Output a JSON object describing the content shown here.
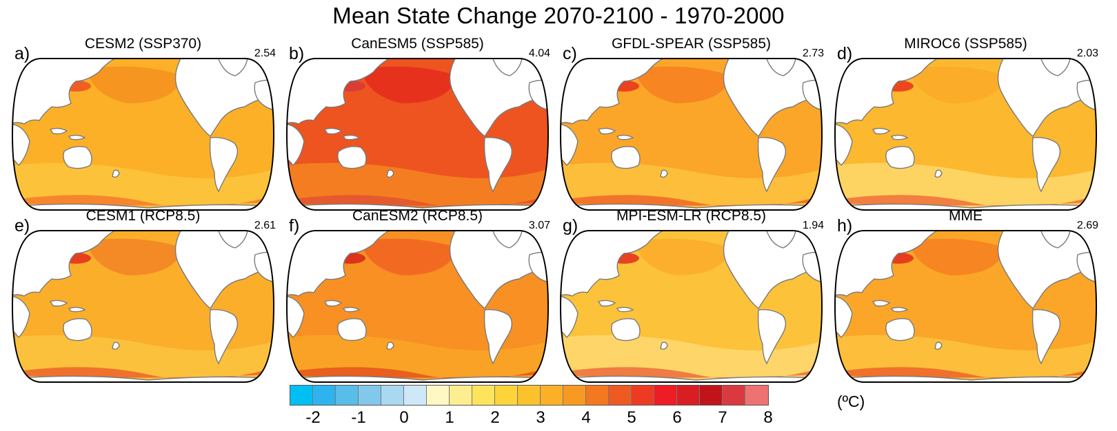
{
  "title": "Mean State Change 2070-2100 - 1970-2000",
  "panels": [
    {
      "label": "a)",
      "title": "CESM2 (SSP370)",
      "mean": "2.54",
      "base": "#fbb027",
      "atl": "#4fb4e8",
      "south": "#fdd24a",
      "north": "#f38a1c",
      "accent": "#ef4a22"
    },
    {
      "label": "b)",
      "title": "CanESM5 (SSP585)",
      "mean": "4.04",
      "base": "#ee5420",
      "atl": "#f2451f",
      "south": "#fc9e22",
      "north": "#e2231c",
      "accent": "#d4373c"
    },
    {
      "label": "c)",
      "title": "GFDL-SPEAR (SSP585)",
      "mean": "2.73",
      "base": "#fba628",
      "atl": "#3f8fe2",
      "south": "#fdd24a",
      "north": "#f37820",
      "accent": "#e8291c"
    },
    {
      "label": "d)",
      "title": "MIROC6 (SSP585)",
      "mean": "2.03",
      "base": "#fcb82e",
      "atl": "#f07a24",
      "south": "#fee98e",
      "north": "#fba628",
      "accent": "#e8291c"
    },
    {
      "label": "e)",
      "title": "CESM1 (RCP8.5)",
      "mean": "2.61",
      "base": "#fbae2a",
      "atl": "#8dcaf0",
      "south": "#fdd24a",
      "north": "#f07a24",
      "accent": "#e2231c"
    },
    {
      "label": "f)",
      "title": "CanESM2 (RCP8.5)",
      "mean": "3.07",
      "base": "#f89024",
      "atl": "#f37820",
      "south": "#fbb027",
      "north": "#ef5a22",
      "accent": "#d51c18"
    },
    {
      "label": "g)",
      "title": "MPI-ESM-LR (RCP8.5)",
      "mean": "1.94",
      "base": "#fcc23a",
      "atl": "#8dcaf0",
      "south": "#fee690",
      "north": "#fba628",
      "accent": "#e2231c"
    },
    {
      "label": "h)",
      "title": "MME",
      "mean": "2.69",
      "base": "#fba628",
      "atl": "#fcd14a",
      "south": "#fdd24a",
      "north": "#f37820",
      "accent": "#e2231c"
    }
  ],
  "colorbar": {
    "colors": [
      "#00bff3",
      "#2db4ef",
      "#58bde9",
      "#82c8ea",
      "#a9d8f1",
      "#cfe8f7",
      "#fff8c2",
      "#ffee90",
      "#fee45c",
      "#fdd53a",
      "#fcc22c",
      "#fbb027",
      "#f89a21",
      "#f37820",
      "#ef5a22",
      "#ef3a23",
      "#ee1c25",
      "#d81e22",
      "#c0141a",
      "#da3a3f",
      "#ee7272"
    ],
    "tick_labels": [
      "-2",
      "-1",
      "0",
      "1",
      "2",
      "3",
      "4",
      "5",
      "6",
      "7",
      "8"
    ],
    "units": "(ºC)"
  }
}
